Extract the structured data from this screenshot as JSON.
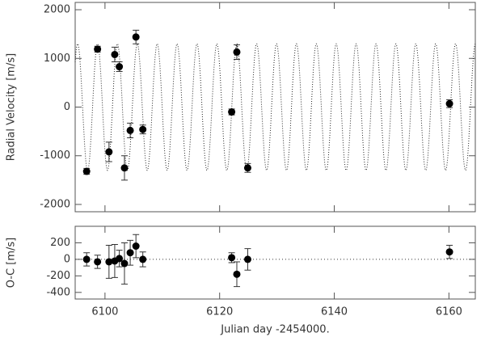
{
  "chart_data": [
    {
      "type": "scatter",
      "ylabel": "Radial Velocity [m/s]",
      "x": [
        6096.8,
        6098.7,
        6100.7,
        6101.7,
        6102.5,
        6103.4,
        6104.4,
        6105.4,
        6106.6,
        6122.1,
        6123.0,
        6124.9,
        6160.1
      ],
      "values": [
        -1320,
        1190,
        -920,
        1080,
        830,
        -1250,
        -480,
        1440,
        -460,
        -100,
        1130,
        -1250,
        70
      ],
      "errors": [
        60,
        60,
        200,
        150,
        100,
        250,
        150,
        140,
        90,
        60,
        150,
        90,
        80
      ],
      "fit": {
        "amplitude": 1300,
        "period": 3.47,
        "epoch": 6098.7,
        "offset": 0
      },
      "xlim": [
        6094.8,
        6164.6
      ],
      "xticks": [
        6100,
        6120,
        6140,
        6160
      ],
      "ylim": [
        -2150,
        2150
      ],
      "yticks": [
        -2000,
        -1000,
        0,
        1000,
        2000
      ],
      "color": "#000000"
    },
    {
      "type": "scatter",
      "ylabel": "O-C [m/s]",
      "xlabel": "Julian day -2454000.",
      "x": [
        6096.8,
        6098.7,
        6100.7,
        6101.7,
        6102.5,
        6103.4,
        6104.4,
        6105.4,
        6106.6,
        6122.1,
        6123.0,
        6124.9,
        6160.1
      ],
      "values": [
        0,
        -30,
        -30,
        -20,
        10,
        -50,
        80,
        160,
        0,
        20,
        -180,
        0,
        90
      ],
      "errors": [
        80,
        80,
        200,
        200,
        100,
        250,
        150,
        140,
        90,
        60,
        150,
        130,
        80
      ],
      "reference_line": 0,
      "xlim": [
        6094.8,
        6164.6
      ],
      "xticks": [
        6100,
        6120,
        6140,
        6160
      ],
      "ylim": [
        -480,
        400
      ],
      "yticks": [
        -400,
        -200,
        0,
        200
      ],
      "color": "#000000"
    }
  ]
}
